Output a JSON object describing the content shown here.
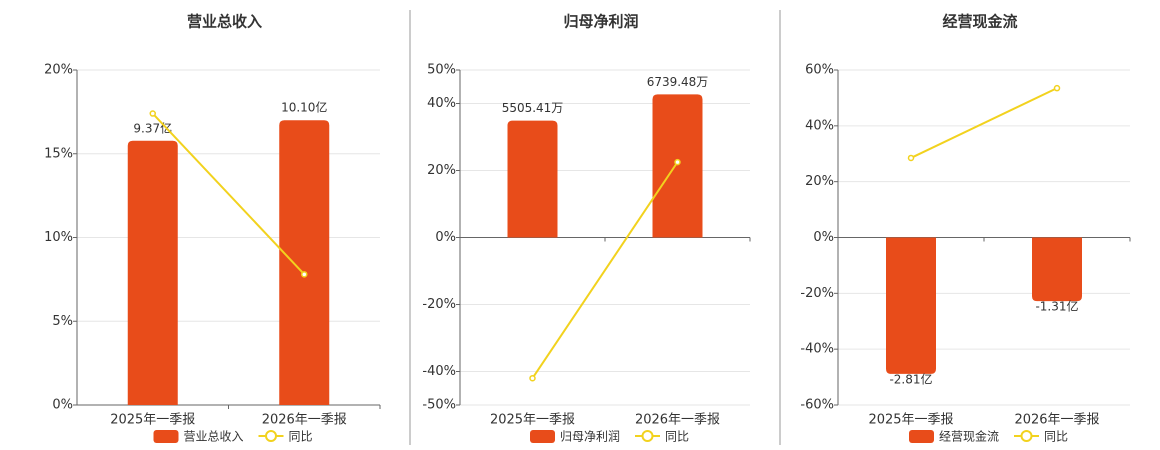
{
  "chart_data": [
    {
      "type": "bar",
      "title": "营业总收入",
      "categories": [
        "2025年一季报",
        "2026年一季报"
      ],
      "series": [
        {
          "name": "营业总收入",
          "color": "#e84c1a",
          "axis": "y2",
          "values": [
            9.37,
            10.1
          ],
          "value_labels": [
            "9.37亿",
            "10.10亿"
          ]
        },
        {
          "name": "同比",
          "type": "line",
          "color": "#f2d21e",
          "values": [
            17.4,
            7.8
          ]
        }
      ],
      "ylim": [
        0,
        20
      ],
      "yticks": [
        {
          "value": 0,
          "label": "0%"
        },
        {
          "value": 5,
          "label": "5%"
        },
        {
          "value": 10,
          "label": "10%"
        },
        {
          "value": 15,
          "label": "15%"
        },
        {
          "value": 20,
          "label": "20%"
        }
      ],
      "y2lim": [
        0,
        11.88
      ],
      "grid": true,
      "legend": "bottom"
    },
    {
      "type": "bar",
      "title": "归母净利润",
      "categories": [
        "2025年一季报",
        "2026年一季报"
      ],
      "series": [
        {
          "name": "归母净利润",
          "color": "#e84c1a",
          "axis": "y2",
          "values": [
            5505.41,
            6739.48
          ],
          "value_labels": [
            "5505.41万",
            "6739.48万"
          ]
        },
        {
          "name": "同比",
          "type": "line",
          "color": "#f2d21e",
          "values": [
            -42,
            22.5
          ]
        }
      ],
      "ylim": [
        -50,
        50
      ],
      "yticks": [
        {
          "value": -50,
          "label": "-50%"
        },
        {
          "value": -40,
          "label": "-40%"
        },
        {
          "value": -20,
          "label": "-20%"
        },
        {
          "value": 0,
          "label": "0%"
        },
        {
          "value": 20,
          "label": "20%"
        },
        {
          "value": 40,
          "label": "40%"
        },
        {
          "value": 50,
          "label": "50%"
        }
      ],
      "y2lim": [
        -7890,
        7890
      ],
      "grid": true,
      "legend": "bottom"
    },
    {
      "type": "bar",
      "title": "经营现金流",
      "categories": [
        "2025年一季报",
        "2026年一季报"
      ],
      "series": [
        {
          "name": "经营现金流",
          "color": "#e84c1a",
          "axis": "y2",
          "values": [
            -2.81,
            -1.31
          ],
          "value_labels": [
            "-2.81亿",
            "-1.31亿"
          ]
        },
        {
          "name": "同比",
          "type": "line",
          "color": "#f2d21e",
          "values": [
            28.5,
            53.5
          ]
        }
      ],
      "ylim": [
        -60,
        60
      ],
      "yticks": [
        {
          "value": -60,
          "label": "-60%"
        },
        {
          "value": -40,
          "label": "-40%"
        },
        {
          "value": -20,
          "label": "-20%"
        },
        {
          "value": 0,
          "label": "0%"
        },
        {
          "value": 20,
          "label": "20%"
        },
        {
          "value": 40,
          "label": "40%"
        },
        {
          "value": 60,
          "label": "60%"
        }
      ],
      "y2lim": [
        -3.45,
        3.45
      ],
      "grid": true,
      "legend": "bottom"
    }
  ]
}
